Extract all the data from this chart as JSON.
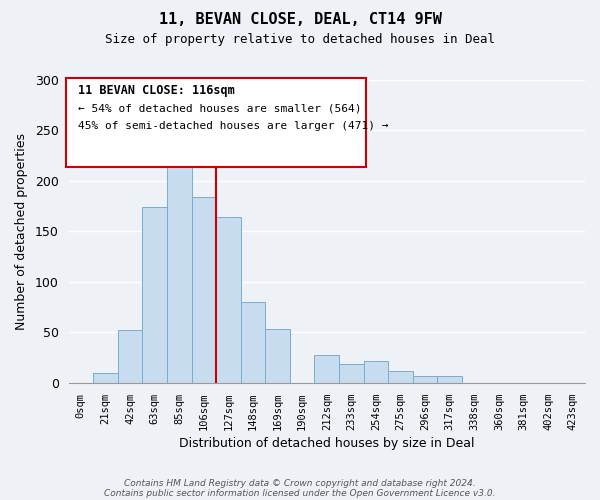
{
  "title": "11, BEVAN CLOSE, DEAL, CT14 9FW",
  "subtitle": "Size of property relative to detached houses in Deal",
  "xlabel": "Distribution of detached houses by size in Deal",
  "ylabel": "Number of detached properties",
  "bar_color": "#c8dcf0",
  "bar_edge_color": "#7aadd0",
  "categories": [
    "0sqm",
    "21sqm",
    "42sqm",
    "63sqm",
    "85sqm",
    "106sqm",
    "127sqm",
    "148sqm",
    "169sqm",
    "190sqm",
    "212sqm",
    "233sqm",
    "254sqm",
    "275sqm",
    "296sqm",
    "317sqm",
    "338sqm",
    "360sqm",
    "381sqm",
    "402sqm",
    "423sqm"
  ],
  "values": [
    0,
    10,
    52,
    174,
    225,
    184,
    164,
    80,
    53,
    0,
    28,
    19,
    22,
    12,
    7,
    7,
    0,
    0,
    0,
    0,
    0
  ],
  "ylim": [
    0,
    300
  ],
  "yticks": [
    0,
    50,
    100,
    150,
    200,
    250,
    300
  ],
  "annotation_line1": "11 BEVAN CLOSE: 116sqm",
  "annotation_line2": "← 54% of detached houses are smaller (564)",
  "annotation_line3": "45% of semi-detached houses are larger (471) →",
  "vline_x_index": 5.5,
  "vline_color": "#cc0000",
  "background_color": "#eef2f7",
  "grid_color": "#ffffff",
  "footer_line1": "Contains HM Land Registry data © Crown copyright and database right 2024.",
  "footer_line2": "Contains public sector information licensed under the Open Government Licence v3.0."
}
